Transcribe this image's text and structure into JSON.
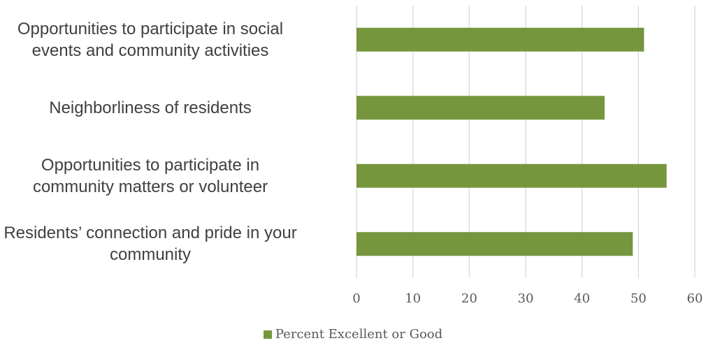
{
  "chart_data": {
    "type": "bar",
    "orientation": "horizontal",
    "categories": [
      [
        "Opportunities to participate in social",
        "events and community activities"
      ],
      [
        "Neighborliness of residents"
      ],
      [
        "Opportunities to participate in",
        "community matters or volunteer"
      ],
      [
        "Residents’ connection and pride in your",
        "community"
      ]
    ],
    "series": [
      {
        "name": "Percent Excellent or Good",
        "values": [
          51,
          44,
          55,
          49
        ]
      }
    ],
    "xticks": [
      "0",
      "10",
      "20",
      "30",
      "40",
      "50",
      "60"
    ],
    "xlim": [
      0,
      60
    ],
    "grid": true,
    "legend_position": "bottom",
    "colors": {
      "bar": "#76963E",
      "grid": "#d9d9d9",
      "text": "#404040",
      "tick": "#595959"
    }
  },
  "legend": {
    "label": "Percent Excellent or Good"
  }
}
